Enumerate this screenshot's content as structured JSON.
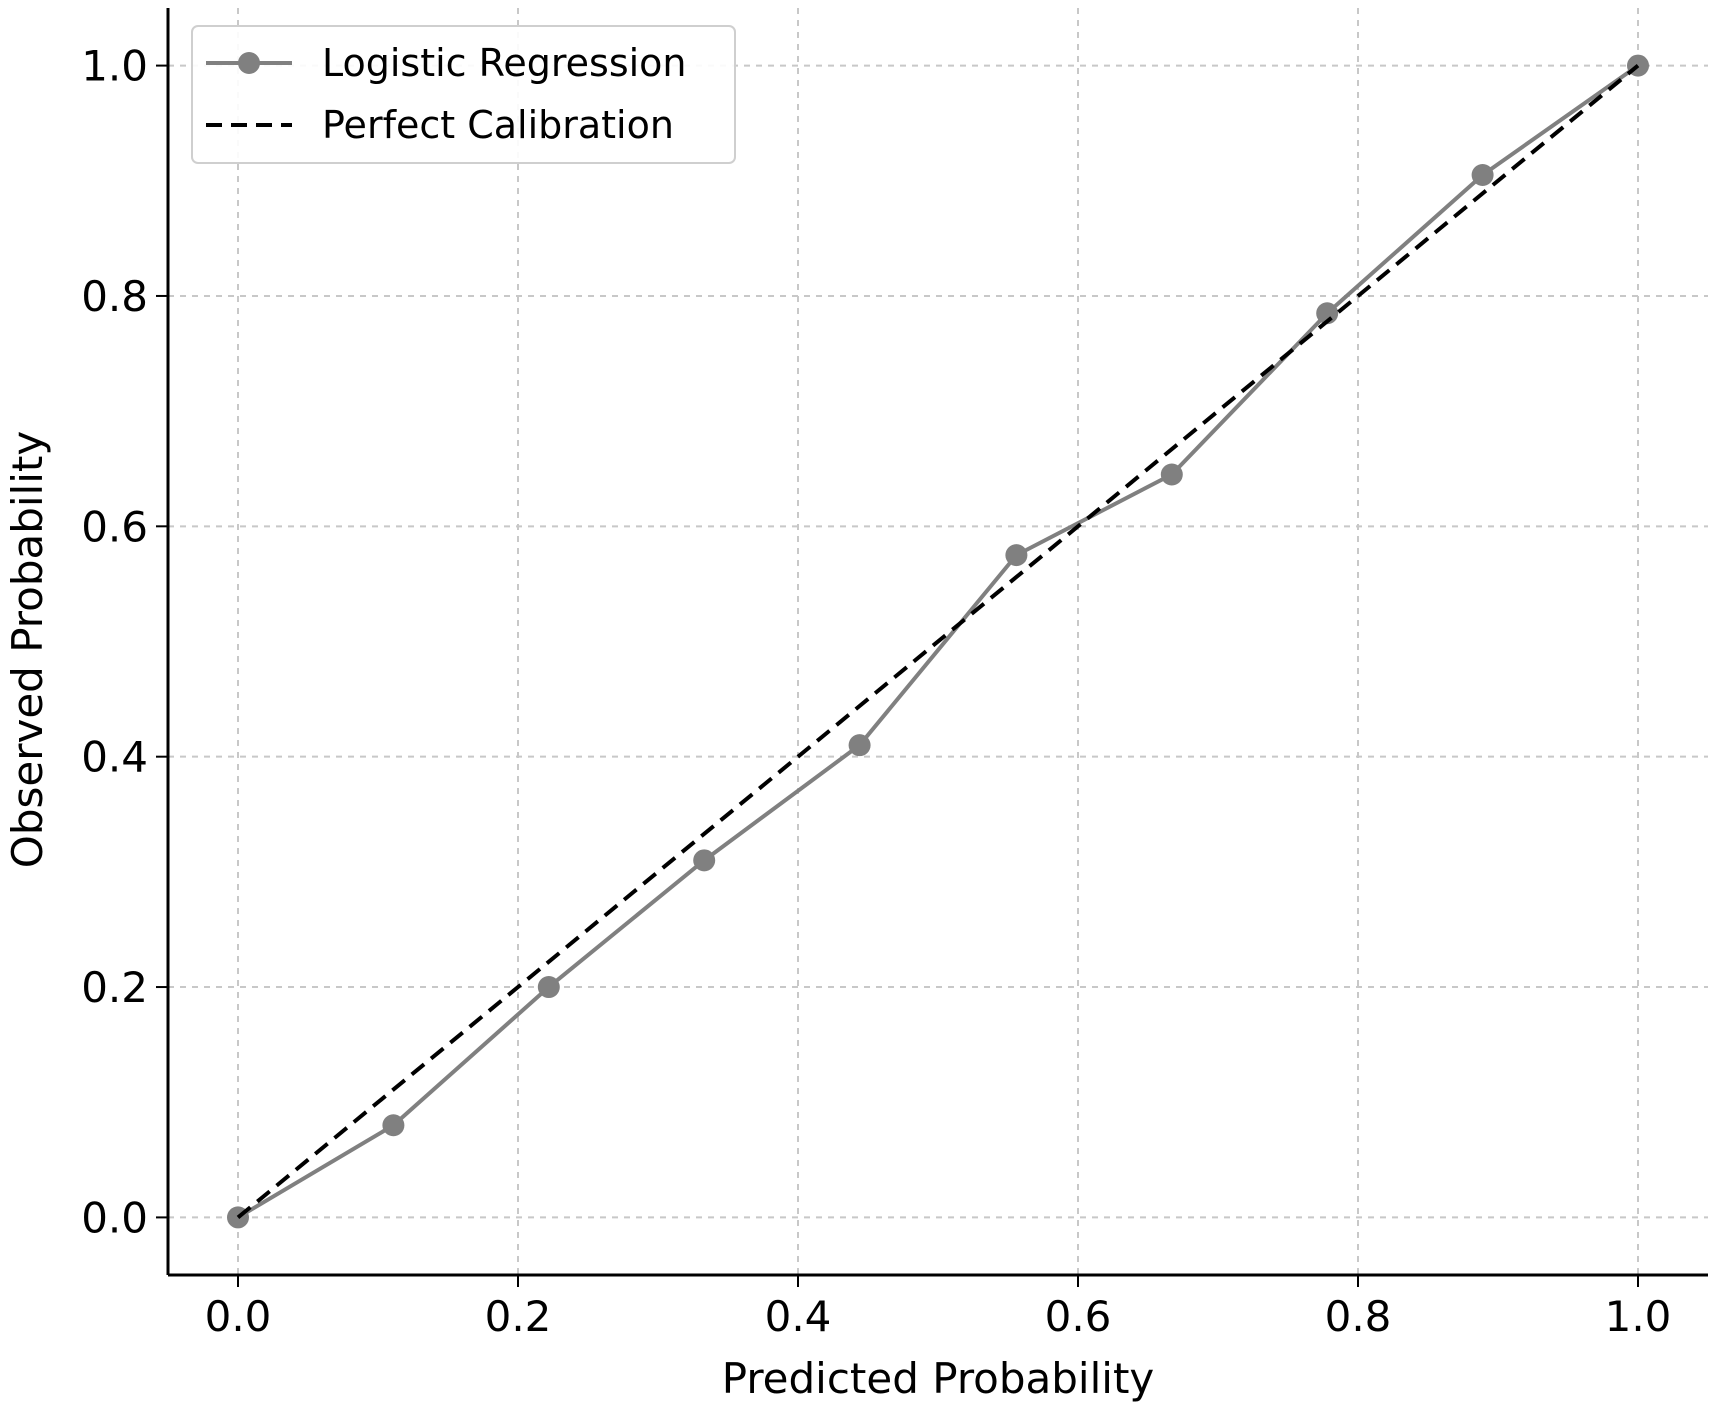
{
  "chart_data": {
    "type": "line",
    "title": "",
    "xlabel": "Predicted Probability",
    "ylabel": "Observed Probability",
    "xlim": [
      -0.05,
      1.05
    ],
    "ylim": [
      -0.05,
      1.05
    ],
    "x_ticks": [
      "0.0",
      "0.2",
      "0.4",
      "0.6",
      "0.8",
      "1.0"
    ],
    "y_ticks": [
      "0.0",
      "0.2",
      "0.4",
      "0.6",
      "0.8",
      "1.0"
    ],
    "grid": true,
    "legend_position": "top-left",
    "series": [
      {
        "name": "Logistic Regression",
        "style": "solid-with-markers",
        "color": "#808080",
        "x": [
          0.0,
          0.111,
          0.222,
          0.333,
          0.444,
          0.556,
          0.667,
          0.778,
          0.889,
          1.0
        ],
        "y": [
          0.0,
          0.08,
          0.2,
          0.31,
          0.41,
          0.575,
          0.645,
          0.785,
          0.905,
          1.0
        ]
      },
      {
        "name": "Perfect Calibration",
        "style": "dashed",
        "color": "#000000",
        "x": [
          0.0,
          1.0
        ],
        "y": [
          0.0,
          1.0
        ]
      }
    ]
  }
}
